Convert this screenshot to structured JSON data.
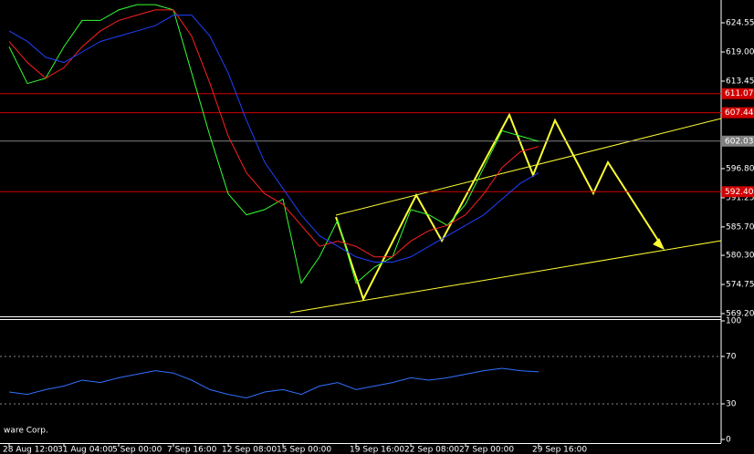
{
  "chart_data": [
    {
      "type": "line",
      "categories": [
        "28 Aug 12:00",
        null,
        null,
        "31 Aug 04:00",
        null,
        null,
        "5 Sep 00:00",
        null,
        null,
        "7 Sep 16:00",
        null,
        null,
        "12 Sep 08:00",
        null,
        null,
        "15 Sep 00:00",
        null,
        null,
        null,
        "19 Sep 16:00",
        null,
        null,
        "22 Sep 08:00",
        null,
        null,
        "27 Sep 00:00",
        null,
        null,
        null,
        "29 Sep 16:00"
      ],
      "series": [
        {
          "color": "#33ff33",
          "values": [
            620,
            613,
            614,
            620,
            625,
            625,
            627,
            628,
            628,
            627,
            615,
            603,
            592,
            588,
            589,
            591,
            575,
            580,
            587,
            575,
            578,
            580,
            589,
            588,
            586,
            590,
            597,
            604,
            603,
            602
          ]
        },
        {
          "color": "#ff2020",
          "values": [
            621,
            617,
            614,
            616,
            620,
            623,
            625,
            626,
            627,
            627,
            622,
            613,
            603,
            596,
            592,
            590,
            586,
            582,
            583,
            582,
            580,
            580,
            583,
            585,
            586,
            588,
            592,
            597,
            600,
            601
          ]
        },
        {
          "color": "#2040ff",
          "values": [
            623,
            621,
            618,
            617,
            619,
            621,
            622,
            623,
            624,
            626,
            626,
            622,
            615,
            606,
            598,
            593,
            588,
            584,
            582,
            580,
            579,
            579,
            580,
            582,
            584,
            586,
            588,
            591,
            594,
            596
          ]
        }
      ],
      "ylim": [
        568.68,
        628.89
      ],
      "yticks": [
        624.55,
        {
          "value": 619,
          "label": "619.00"
        },
        613.45,
        {
          "value": 596.8,
          "label": "596.80"
        },
        591.25,
        {
          "value": 585.7,
          "label": "585.70"
        },
        {
          "value": 580.3,
          "label": "580.30"
        },
        574.75,
        {
          "value": 569.2,
          "label": "569.20"
        }
      ],
      "levels": [
        {
          "value": 611.07,
          "color": "#d00000"
        },
        {
          "value": 607.44,
          "color": "#d00000"
        },
        {
          "value": 602.03,
          "color": "#808080"
        },
        {
          "value": 592.4,
          "label": "592.40",
          "color": "#d00000"
        }
      ]
    },
    {
      "type": "line",
      "annotation": "ware Corp.",
      "series": [
        {
          "color": "#3070ff",
          "values": [
            40,
            38,
            42,
            45,
            50,
            48,
            52,
            55,
            58,
            56,
            50,
            42,
            38,
            35,
            40,
            42,
            38,
            45,
            48,
            42,
            45,
            48,
            52,
            50,
            52,
            55,
            58,
            60,
            58,
            57
          ]
        }
      ],
      "ylim": [
        0,
        100
      ],
      "yticks": [
        0,
        30,
        70,
        100
      ],
      "levels": [
        30,
        70
      ]
    }
  ]
}
